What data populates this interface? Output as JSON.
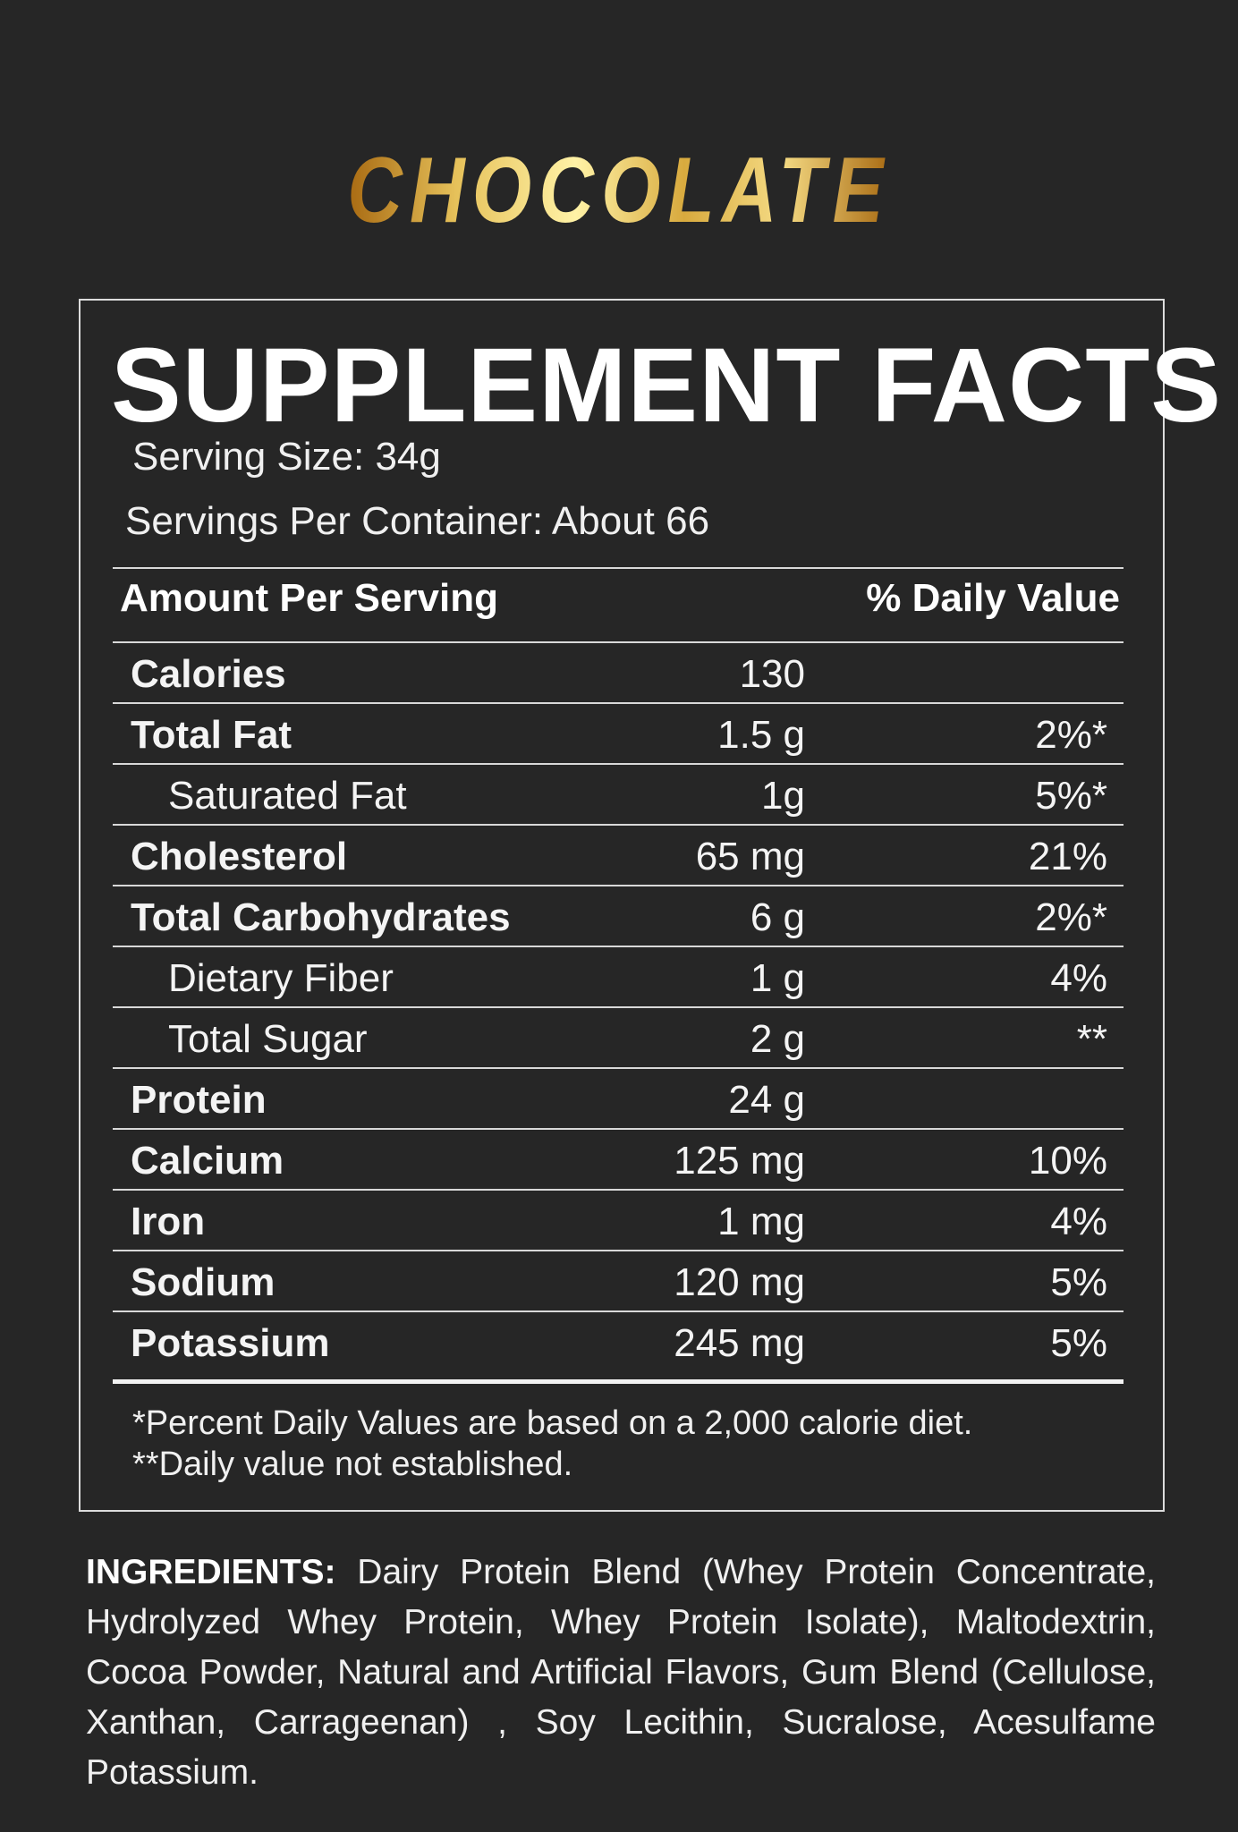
{
  "flavor": "CHOCOLATE",
  "colors": {
    "background": "#262626",
    "gold_light": "#fff2a6",
    "gold_dark": "#a86a12",
    "text": "#f4f4f4",
    "rule": "#d8d8d8"
  },
  "facts": {
    "title": "SUPPLEMENT FACTS",
    "serving_size": "Serving Size: 34g",
    "servings_per_container": "Servings Per Container: About 66",
    "header_left": "Amount Per Serving",
    "header_right": "% Daily Value",
    "rows": [
      {
        "name": "Calories",
        "amount": "130",
        "dv": ""
      },
      {
        "name": "Total Fat",
        "amount": "1.5 g",
        "dv": "2%*"
      },
      {
        "name": "Saturated Fat",
        "amount": "1g",
        "dv": "5%*"
      },
      {
        "name": "Cholesterol",
        "amount": "65 mg",
        "dv": "21%"
      },
      {
        "name": "Total Carbohydrates",
        "amount": "6 g",
        "dv": "2%*"
      },
      {
        "name": "Dietary Fiber",
        "amount": "1 g",
        "dv": "4%"
      },
      {
        "name": "Total Sugar",
        "amount": "2 g",
        "dv": "**"
      },
      {
        "name": "Protein",
        "amount": "24 g",
        "dv": ""
      },
      {
        "name": "Calcium",
        "amount": "125 mg",
        "dv": "10%"
      },
      {
        "name": "Iron",
        "amount": "1 mg",
        "dv": "4%"
      },
      {
        "name": "Sodium",
        "amount": "120 mg",
        "dv": "5%"
      },
      {
        "name": "Potassium",
        "amount": "245 mg",
        "dv": "5%"
      }
    ],
    "footnote_1": "*Percent Daily Values are based on a 2,000 calorie diet.",
    "footnote_2": "**Daily value not established."
  },
  "ingredients": {
    "label": "INGREDIENTS:",
    "text": "Dairy Protein Blend (Whey Protein Concentrate, Hydrolyzed Whey Protein, Whey Protein Isolate), Maltodextrin, Cocoa Powder, Natural and Artificial Flavors, Gum Blend (Cellulose, Xanthan, Carrageenan) , Soy Lecithin, Sucralose, Acesulfame Potassium."
  }
}
